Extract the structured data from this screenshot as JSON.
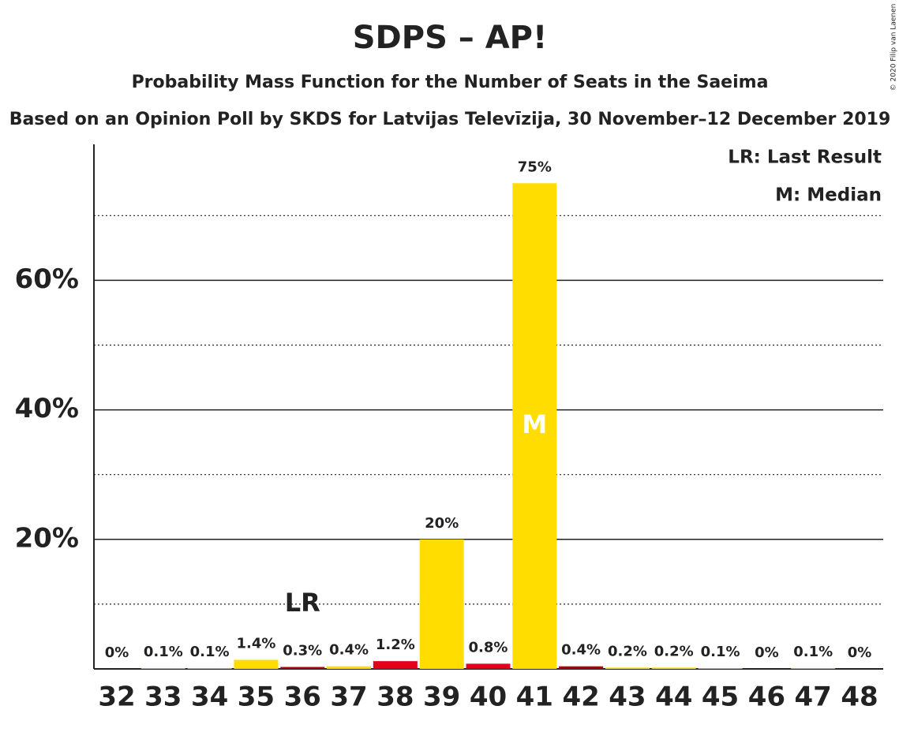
{
  "chart_data": {
    "type": "bar",
    "title": "SDPS – AP!",
    "subtitles": [
      "Probability Mass Function for the Number of Seats in the Saeima",
      "Based on an Opinion Poll by SKDS for Latvijas Televīzija, 30 November–12 December 2019"
    ],
    "credit": "© 2020 Filip van Laenen",
    "categories": [
      "32",
      "33",
      "34",
      "35",
      "36",
      "37",
      "38",
      "39",
      "40",
      "41",
      "42",
      "43",
      "44",
      "45",
      "46",
      "47",
      "48"
    ],
    "values": [
      0,
      0.1,
      0.1,
      1.4,
      0.3,
      0.4,
      1.2,
      20,
      0.8,
      75,
      0.4,
      0.2,
      0.2,
      0.1,
      0,
      0.1,
      0
    ],
    "value_labels": [
      "0%",
      "0.1%",
      "0.1%",
      "1.4%",
      "0.3%",
      "0.4%",
      "1.2%",
      "20%",
      "0.8%",
      "75%",
      "0.4%",
      "0.2%",
      "0.2%",
      "0.1%",
      "0%",
      "0.1%",
      "0%"
    ],
    "colors": [
      "#ffdd00",
      "#ffdd00",
      "#ffdd00",
      "#ffdd00",
      "#b00010",
      "#ffdd00",
      "#e4001a",
      "#ffdd00",
      "#e4001a",
      "#ffdd00",
      "#b00010",
      "#ffdd00",
      "#ffdd00",
      "#ffdd00",
      "#ffdd00",
      "#ffdd00",
      "#ffdd00"
    ],
    "ylim": [
      0,
      81
    ],
    "yticks": [
      {
        "value": 20,
        "label": "20%"
      },
      {
        "value": 40,
        "label": "40%"
      },
      {
        "value": 60,
        "label": "60%"
      }
    ],
    "minor_grid": [
      10,
      30,
      50,
      70
    ],
    "annotations": [
      {
        "label": "LR",
        "category": "36"
      },
      {
        "label": "M",
        "category": "41"
      }
    ],
    "legend_entries": [
      "LR: Last Result",
      "M: Median"
    ]
  }
}
